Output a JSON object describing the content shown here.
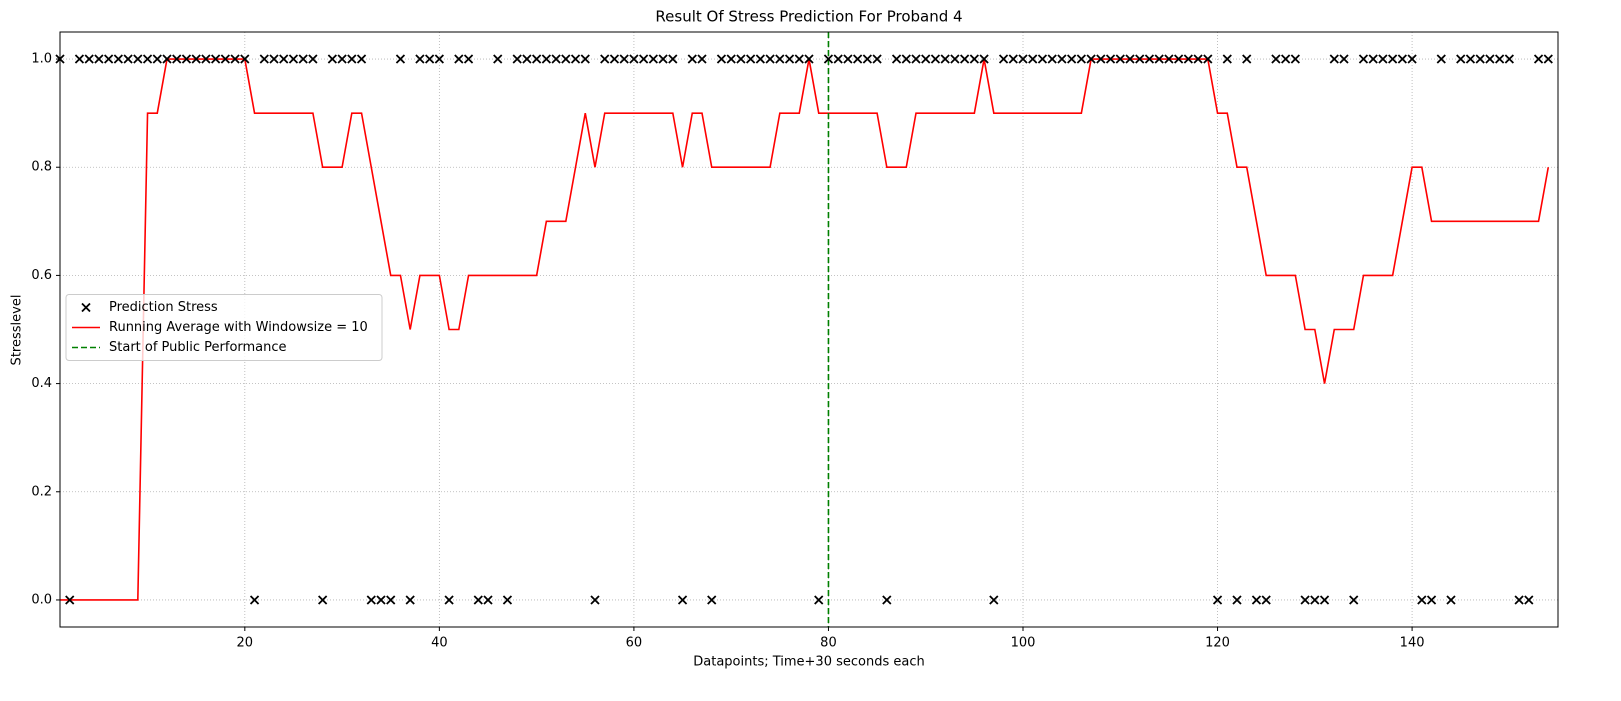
{
  "chart_data": {
    "type": "scatter",
    "title": "Result Of Stress Prediction For Proband 4",
    "x_label": "Datapoints; Time+30 seconds each",
    "y_label": "Stresslevel",
    "x": [
      1,
      2,
      3,
      4,
      5,
      6,
      7,
      8,
      9,
      10,
      11,
      12,
      13,
      14,
      15,
      16,
      17,
      18,
      19,
      20,
      21,
      22,
      23,
      24,
      25,
      26,
      27,
      28,
      29,
      30,
      31,
      32,
      33,
      34,
      35,
      36,
      37,
      38,
      39,
      40,
      41,
      42,
      43,
      44,
      45,
      46,
      47,
      48,
      49,
      50,
      51,
      52,
      53,
      54,
      55,
      56,
      57,
      58,
      59,
      60,
      61,
      62,
      63,
      64,
      65,
      66,
      67,
      68,
      69,
      70,
      71,
      72,
      73,
      74,
      75,
      76,
      77,
      78,
      79,
      80,
      81,
      82,
      83,
      84,
      85,
      86,
      87,
      88,
      89,
      90,
      91,
      92,
      93,
      94,
      95,
      96,
      97,
      98,
      99,
      100,
      101,
      102,
      103,
      104,
      105,
      106,
      107,
      108,
      109,
      110,
      111,
      112,
      113,
      114,
      115,
      116,
      117,
      118,
      119,
      120,
      121,
      122,
      123,
      124,
      125,
      126,
      127,
      128,
      129,
      130,
      131,
      132,
      133,
      134,
      135,
      136,
      137,
      138,
      139,
      140,
      141,
      142,
      143,
      144,
      145,
      146,
      147,
      148,
      149,
      150,
      151,
      152,
      153,
      154
    ],
    "series": [
      {
        "name": "Prediction Stress",
        "type": "scatter",
        "marker": "x",
        "color": "#000000",
        "values": [
          1,
          0,
          1,
          1,
          1,
          1,
          1,
          1,
          1,
          1,
          1,
          1,
          1,
          1,
          1,
          1,
          1,
          1,
          1,
          1,
          0,
          1,
          1,
          1,
          1,
          1,
          1,
          0,
          1,
          1,
          1,
          1,
          0,
          0,
          0,
          1,
          0,
          1,
          1,
          1,
          0,
          1,
          1,
          0,
          0,
          1,
          0,
          1,
          1,
          1,
          1,
          1,
          1,
          1,
          1,
          0,
          1,
          1,
          1,
          1,
          1,
          1,
          1,
          1,
          0,
          1,
          1,
          0,
          1,
          1,
          1,
          1,
          1,
          1,
          1,
          1,
          1,
          1,
          0,
          1,
          1,
          1,
          1,
          1,
          1,
          0,
          1,
          1,
          1,
          1,
          1,
          1,
          1,
          1,
          1,
          1,
          0,
          1,
          1,
          1,
          1,
          1,
          1,
          1,
          1,
          1,
          1,
          1,
          1,
          1,
          1,
          1,
          1,
          1,
          1,
          1,
          1,
          1,
          1,
          0,
          1,
          0,
          1,
          0,
          0,
          1,
          1,
          1,
          0,
          0,
          0,
          1,
          1,
          0,
          1,
          1,
          1,
          1,
          1,
          1,
          0,
          0,
          1,
          0,
          1,
          1,
          1,
          1,
          1,
          1,
          0,
          0,
          1,
          1
        ]
      },
      {
        "name": "Running Average with Windowsize = 10",
        "type": "line",
        "color": "#ff0000",
        "values": [
          0,
          0,
          0,
          0,
          0,
          0,
          0,
          0,
          0,
          0.9,
          0.9,
          1,
          1,
          1,
          1,
          1,
          1,
          1,
          1,
          1,
          0.9,
          0.9,
          0.9,
          0.9,
          0.9,
          0.9,
          0.9,
          0.8,
          0.8,
          0.8,
          0.9,
          0.9,
          0.8,
          0.7,
          0.6,
          0.6,
          0.5,
          0.6,
          0.6,
          0.6,
          0.5,
          0.5,
          0.6,
          0.6,
          0.6,
          0.6,
          0.6,
          0.6,
          0.6,
          0.6,
          0.7,
          0.7,
          0.7,
          0.8,
          0.9,
          0.8,
          0.9,
          0.9,
          0.9,
          0.9,
          0.9,
          0.9,
          0.9,
          0.9,
          0.8,
          0.9,
          0.9,
          0.8,
          0.8,
          0.8,
          0.8,
          0.8,
          0.8,
          0.8,
          0.9,
          0.9,
          0.9,
          1,
          0.9,
          0.9,
          0.9,
          0.9,
          0.9,
          0.9,
          0.9,
          0.8,
          0.8,
          0.8,
          0.9,
          0.9,
          0.9,
          0.9,
          0.9,
          0.9,
          0.9,
          1,
          0.9,
          0.9,
          0.9,
          0.9,
          0.9,
          0.9,
          0.9,
          0.9,
          0.9,
          0.9,
          1,
          1,
          1,
          1,
          1,
          1,
          1,
          1,
          1,
          1,
          1,
          1,
          1,
          0.9,
          0.9,
          0.8,
          0.8,
          0.7,
          0.6,
          0.6,
          0.6,
          0.6,
          0.5,
          0.5,
          0.4,
          0.5,
          0.5,
          0.5,
          0.6,
          0.6,
          0.6,
          0.6,
          0.7,
          0.8,
          0.8,
          0.7,
          0.7,
          0.7,
          0.7,
          0.7,
          0.7,
          0.7,
          0.7,
          0.7,
          0.7,
          0.7,
          0.7,
          0.8
        ]
      },
      {
        "name": "Start of Public Performance",
        "type": "vline",
        "color": "#008000",
        "dashed": true,
        "x": 80
      }
    ],
    "xlim": [
      1,
      155
    ],
    "ylim": [
      -0.05,
      1.05
    ],
    "xticks": [
      20,
      40,
      60,
      80,
      100,
      120,
      140
    ],
    "yticks": [
      {
        "value": 0,
        "label": "0.0"
      },
      0.2,
      0.4,
      0.6,
      0.8,
      {
        "value": 1,
        "label": "1.0"
      }
    ],
    "grid": true,
    "legend": "center left"
  }
}
